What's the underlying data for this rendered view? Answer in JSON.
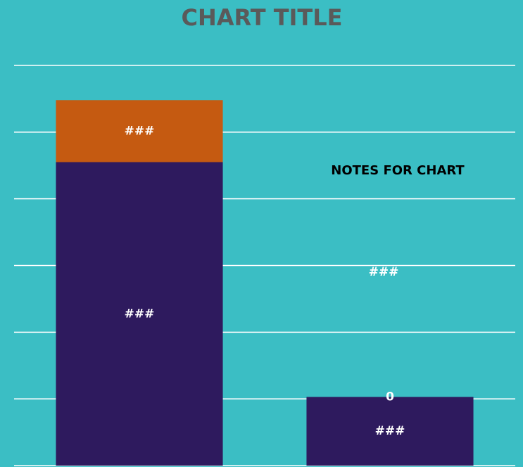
{
  "chart_data": {
    "type": "stacked_bar",
    "title": "CHART TITLE",
    "categories": [
      null,
      null
    ],
    "series": [
      {
        "name": null,
        "color": "#2e1a5e",
        "values": [
          4.55,
          1.03
        ],
        "value_labels": [
          "###",
          "###"
        ]
      },
      {
        "name": null,
        "color": "#c55a11",
        "values": [
          0.93,
          0
        ],
        "value_labels": [
          "###",
          "0"
        ]
      }
    ],
    "annotations": [
      {
        "text": "NOTES FOR CHART",
        "color": "#000000"
      },
      {
        "text": "###",
        "color": "#ffffff"
      }
    ],
    "ylim": [
      0,
      6
    ],
    "yticks": [
      0,
      1,
      2,
      3,
      4,
      5,
      6
    ],
    "grid": true
  }
}
